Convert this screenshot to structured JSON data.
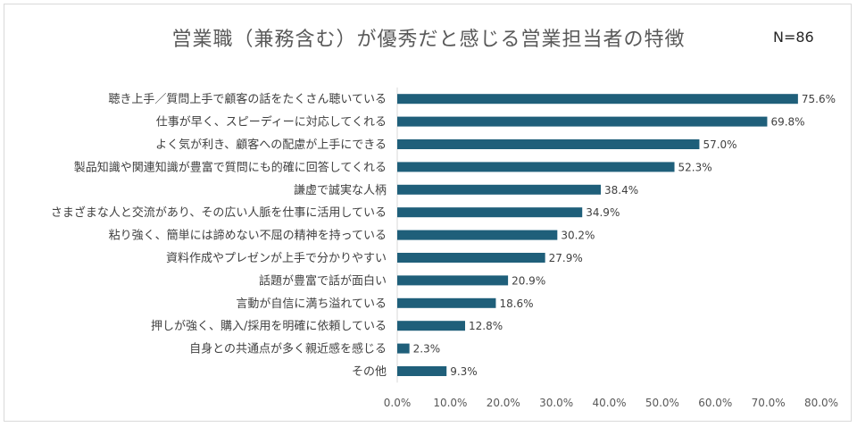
{
  "chart_data": {
    "type": "bar",
    "orientation": "horizontal",
    "title": "営業職（兼務含む）が優秀だと感じる営業担当者の特徴",
    "sample_size": "N=86",
    "categories": [
      "聴き上手／質問上手で顧客の話をたくさん聴いている",
      "仕事が早く、スピーディーに対応してくれる",
      "よく気が利き、顧客への配慮が上手にできる",
      "製品知識や関連知識が豊富で質問にも的確に回答してくれる",
      "謙虚で誠実な人柄",
      "さまざまな人と交流があり、その広い人脈を仕事に活用している",
      "粘り強く、簡単には諦めない不屈の精神を持っている",
      "資料作成やプレゼンが上手で分かりやすい",
      "話題が豊富で話が面白い",
      "言動が自信に満ち溢れている",
      "押しが強く、購入/採用を明確に依頼している",
      "自身との共通点が多く親近感を感じる",
      "その他"
    ],
    "values": [
      75.6,
      69.8,
      57.0,
      52.3,
      38.4,
      34.9,
      30.2,
      27.9,
      20.9,
      18.6,
      12.8,
      2.3,
      9.3
    ],
    "value_labels": [
      "75.6%",
      "69.8%",
      "57.0%",
      "52.3%",
      "38.4%",
      "34.9%",
      "30.2%",
      "27.9%",
      "20.9%",
      "18.6%",
      "12.8%",
      "2.3%",
      "9.3%"
    ],
    "xticks": [
      "0.0%",
      "10.0%",
      "20.0%",
      "30.0%",
      "40.0%",
      "50.0%",
      "60.0%",
      "70.0%",
      "80.0%"
    ],
    "xlim": [
      0,
      80
    ],
    "bar_color": "#1f5f7a",
    "grid": false,
    "legend": false
  }
}
